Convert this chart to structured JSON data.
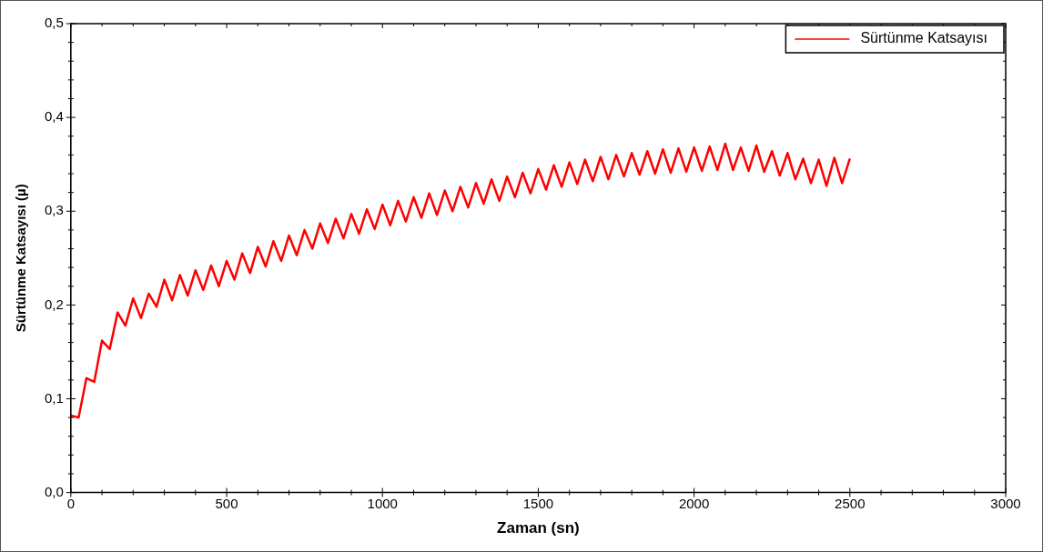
{
  "chart_data": {
    "type": "line",
    "xlabel": "Zaman (sn)",
    "ylabel": "Sürtünme Katsayısı (µ)",
    "legend": "top right",
    "grid": false,
    "marker": "none",
    "line_style": "solid",
    "xlim": [
      0,
      3000
    ],
    "ylim": [
      0,
      0.5
    ],
    "xticks": [
      0,
      {
        "value": 100,
        "label": null
      },
      {
        "value": 200,
        "label": null
      },
      {
        "value": 300,
        "label": null
      },
      {
        "value": 400,
        "label": null
      },
      500,
      {
        "value": 600,
        "label": null
      },
      {
        "value": 700,
        "label": null
      },
      {
        "value": 800,
        "label": null
      },
      {
        "value": 900,
        "label": null
      },
      1000,
      {
        "value": 1100,
        "label": null
      },
      {
        "value": 1200,
        "label": null
      },
      {
        "value": 1300,
        "label": null
      },
      {
        "value": 1400,
        "label": null
      },
      1500,
      {
        "value": 1600,
        "label": null
      },
      {
        "value": 1700,
        "label": null
      },
      {
        "value": 1800,
        "label": null
      },
      {
        "value": 1900,
        "label": null
      },
      2000,
      {
        "value": 2100,
        "label": null
      },
      {
        "value": 2200,
        "label": null
      },
      {
        "value": 2300,
        "label": null
      },
      {
        "value": 2400,
        "label": null
      },
      2500,
      {
        "value": 2600,
        "label": null
      },
      {
        "value": 2700,
        "label": null
      },
      {
        "value": 2800,
        "label": null
      },
      {
        "value": 2900,
        "label": null
      },
      3000
    ],
    "yticks": [
      {
        "value": 0,
        "label": "0,0"
      },
      {
        "value": 0.02,
        "label": null
      },
      {
        "value": 0.04,
        "label": null
      },
      {
        "value": 0.06,
        "label": null
      },
      {
        "value": 0.08,
        "label": null
      },
      {
        "value": 0.1,
        "label": "0,1"
      },
      {
        "value": 0.12,
        "label": null
      },
      {
        "value": 0.14,
        "label": null
      },
      {
        "value": 0.16,
        "label": null
      },
      {
        "value": 0.18,
        "label": null
      },
      {
        "value": 0.2,
        "label": "0,2"
      },
      {
        "value": 0.22,
        "label": null
      },
      {
        "value": 0.24,
        "label": null
      },
      {
        "value": 0.26,
        "label": null
      },
      {
        "value": 0.28,
        "label": null
      },
      {
        "value": 0.3,
        "label": "0,3"
      },
      {
        "value": 0.32,
        "label": null
      },
      {
        "value": 0.34,
        "label": null
      },
      {
        "value": 0.36,
        "label": null
      },
      {
        "value": 0.38,
        "label": null
      },
      {
        "value": 0.4,
        "label": "0,4"
      },
      {
        "value": 0.42,
        "label": null
      },
      {
        "value": 0.44,
        "label": null
      },
      {
        "value": 0.46,
        "label": null
      },
      {
        "value": 0.48,
        "label": null
      },
      {
        "value": 0.5,
        "label": "0,5"
      }
    ],
    "x": [
      0,
      25,
      50,
      75,
      100,
      125,
      150,
      175,
      200,
      225,
      250,
      275,
      300,
      325,
      350,
      375,
      400,
      425,
      450,
      475,
      500,
      525,
      550,
      575,
      600,
      625,
      650,
      675,
      700,
      725,
      750,
      775,
      800,
      825,
      850,
      875,
      900,
      925,
      950,
      975,
      1000,
      1025,
      1050,
      1075,
      1100,
      1125,
      1150,
      1175,
      1200,
      1225,
      1250,
      1275,
      1300,
      1325,
      1350,
      1375,
      1400,
      1425,
      1450,
      1475,
      1500,
      1525,
      1550,
      1575,
      1600,
      1625,
      1650,
      1675,
      1700,
      1725,
      1750,
      1775,
      1800,
      1825,
      1850,
      1875,
      1900,
      1925,
      1950,
      1975,
      2000,
      2025,
      2050,
      2075,
      2100,
      2125,
      2150,
      2175,
      2200,
      2225,
      2250,
      2275,
      2300,
      2325,
      2350,
      2375,
      2400,
      2425,
      2450,
      2475,
      2500
    ],
    "series": [
      {
        "name": "Sürtünme Katsayısı",
        "color": "#ff0000",
        "values": [
          0.082,
          0.08,
          0.122,
          0.118,
          0.162,
          0.153,
          0.192,
          0.178,
          0.207,
          0.186,
          0.212,
          0.198,
          0.227,
          0.205,
          0.232,
          0.21,
          0.237,
          0.216,
          0.242,
          0.22,
          0.247,
          0.227,
          0.255,
          0.234,
          0.262,
          0.241,
          0.268,
          0.247,
          0.274,
          0.253,
          0.28,
          0.26,
          0.287,
          0.266,
          0.292,
          0.271,
          0.297,
          0.276,
          0.302,
          0.281,
          0.307,
          0.285,
          0.311,
          0.289,
          0.315,
          0.293,
          0.319,
          0.296,
          0.322,
          0.3,
          0.326,
          0.304,
          0.33,
          0.308,
          0.334,
          0.311,
          0.337,
          0.315,
          0.341,
          0.319,
          0.345,
          0.323,
          0.349,
          0.326,
          0.352,
          0.329,
          0.355,
          0.332,
          0.358,
          0.334,
          0.36,
          0.337,
          0.362,
          0.339,
          0.364,
          0.34,
          0.366,
          0.341,
          0.367,
          0.342,
          0.368,
          0.343,
          0.369,
          0.344,
          0.372,
          0.344,
          0.368,
          0.343,
          0.37,
          0.342,
          0.364,
          0.338,
          0.362,
          0.334,
          0.356,
          0.33,
          0.355,
          0.327,
          0.357,
          0.33,
          0.356
        ]
      }
    ]
  }
}
